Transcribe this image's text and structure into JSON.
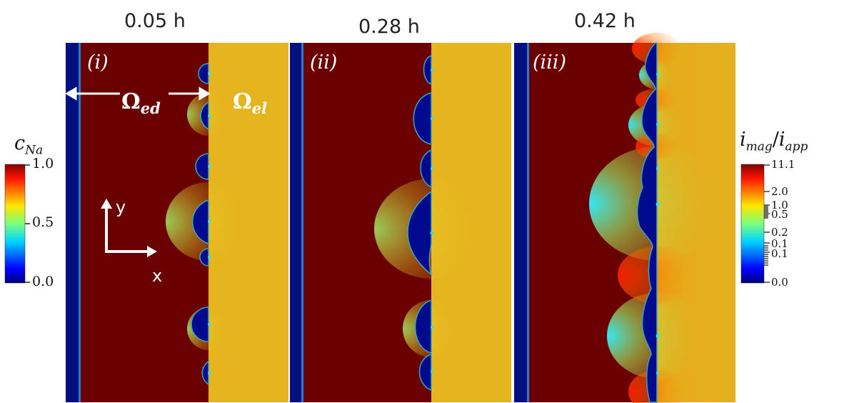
{
  "times": [
    "0.05 h",
    "0.28 h",
    "0.42 h"
  ],
  "panels": [
    "(i)",
    "(ii)",
    "(iii)"
  ],
  "regions": {
    "electrode": "Ω",
    "electrode_sub": "ed",
    "electrolyte": "Ω",
    "electrolyte_sub": "el"
  },
  "axes": {
    "x": "x",
    "y": "y"
  },
  "colorbar_left": {
    "title_main": "c",
    "title_sub": "Na",
    "ticks": [
      "1.0",
      "0.5",
      "0.0"
    ],
    "colormap": "jet"
  },
  "colorbar_right": {
    "title": "i",
    "title_sub1": "mag",
    "slash": "/",
    "title2": "i",
    "title_sub2": "app",
    "ticks": [
      "11.1",
      "2.0",
      "1.0",
      "0.5",
      "0.2",
      "0.1",
      "0.1",
      "0.0"
    ],
    "colormap": "jet",
    "scale": "log"
  },
  "colors": {
    "electrode": "#6a0000",
    "current_collector": "#000f80",
    "electrolyte": "#e6b41e",
    "deposit": "#000a8c"
  }
}
